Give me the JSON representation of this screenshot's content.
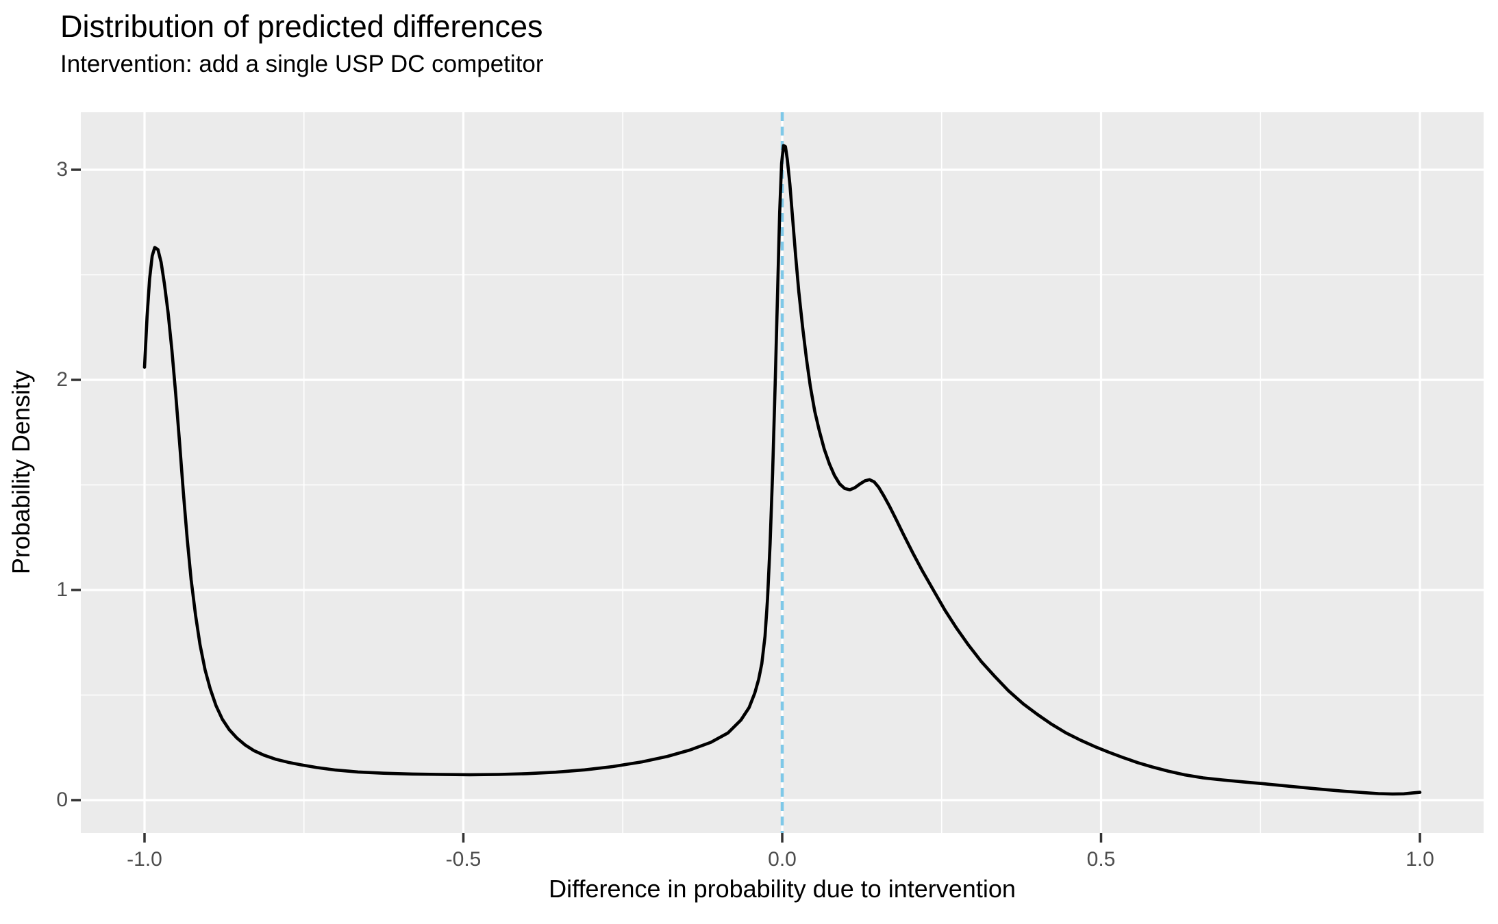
{
  "chart_data": {
    "type": "line",
    "title": "Distribution of predicted differences",
    "subtitle": "Intervention: add a single USP DC competitor",
    "xlabel": "Difference in probability due to intervention",
    "ylabel": "Probability Density",
    "xlim": [
      -1.1,
      1.1
    ],
    "ylim": [
      -0.155,
      3.27
    ],
    "x_ticks": [
      -1.0,
      -0.5,
      0.0,
      0.5,
      1.0
    ],
    "x_tick_labels": [
      "-1.0",
      "-0.5",
      "0.0",
      "0.5",
      "1.0"
    ],
    "y_ticks": [
      0,
      1,
      2,
      3
    ],
    "y_tick_labels": [
      "0",
      "1",
      "2",
      "3"
    ],
    "grid": "major+minor",
    "legend": "none",
    "colors": {
      "panel_bg": "#EBEBEB",
      "grid": "#FFFFFF",
      "curve": "#000000",
      "tick_mark": "#333333",
      "tick_label": "#4D4D4D",
      "vline": "#7EC8E8"
    },
    "vline": {
      "x": 0.0,
      "style": "dashed",
      "color": "#7EC8E8"
    },
    "series": [
      {
        "name": "density of predicted differences",
        "points": [
          [
            -1.0,
            2.06
          ],
          [
            -0.996,
            2.3
          ],
          [
            -0.992,
            2.48
          ],
          [
            -0.988,
            2.59
          ],
          [
            -0.984,
            2.63
          ],
          [
            -0.979,
            2.62
          ],
          [
            -0.974,
            2.56
          ],
          [
            -0.969,
            2.46
          ],
          [
            -0.963,
            2.32
          ],
          [
            -0.957,
            2.14
          ],
          [
            -0.951,
            1.93
          ],
          [
            -0.945,
            1.7
          ],
          [
            -0.939,
            1.46
          ],
          [
            -0.933,
            1.24
          ],
          [
            -0.927,
            1.05
          ],
          [
            -0.92,
            0.88
          ],
          [
            -0.913,
            0.74
          ],
          [
            -0.905,
            0.62
          ],
          [
            -0.897,
            0.53
          ],
          [
            -0.888,
            0.45
          ],
          [
            -0.878,
            0.385
          ],
          [
            -0.867,
            0.335
          ],
          [
            -0.855,
            0.295
          ],
          [
            -0.842,
            0.262
          ],
          [
            -0.828,
            0.235
          ],
          [
            -0.812,
            0.213
          ],
          [
            -0.795,
            0.195
          ],
          [
            -0.775,
            0.18
          ],
          [
            -0.755,
            0.168
          ],
          [
            -0.73,
            0.155
          ],
          [
            -0.7,
            0.143
          ],
          [
            -0.665,
            0.134
          ],
          [
            -0.625,
            0.128
          ],
          [
            -0.58,
            0.124
          ],
          [
            -0.535,
            0.122
          ],
          [
            -0.49,
            0.121
          ],
          [
            -0.445,
            0.122
          ],
          [
            -0.4,
            0.126
          ],
          [
            -0.355,
            0.133
          ],
          [
            -0.31,
            0.144
          ],
          [
            -0.265,
            0.16
          ],
          [
            -0.22,
            0.182
          ],
          [
            -0.18,
            0.208
          ],
          [
            -0.145,
            0.238
          ],
          [
            -0.112,
            0.275
          ],
          [
            -0.085,
            0.32
          ],
          [
            -0.065,
            0.38
          ],
          [
            -0.052,
            0.44
          ],
          [
            -0.043,
            0.51
          ],
          [
            -0.037,
            0.575
          ],
          [
            -0.032,
            0.65
          ],
          [
            -0.027,
            0.78
          ],
          [
            -0.023,
            0.96
          ],
          [
            -0.019,
            1.22
          ],
          [
            -0.015,
            1.56
          ],
          [
            -0.011,
            1.99
          ],
          [
            -0.007,
            2.45
          ],
          [
            -0.004,
            2.8
          ],
          [
            -0.001,
            3.03
          ],
          [
            0.002,
            3.115
          ],
          [
            0.005,
            3.11
          ],
          [
            0.008,
            3.05
          ],
          [
            0.012,
            2.93
          ],
          [
            0.016,
            2.78
          ],
          [
            0.021,
            2.59
          ],
          [
            0.026,
            2.42
          ],
          [
            0.032,
            2.25
          ],
          [
            0.038,
            2.1
          ],
          [
            0.044,
            1.97
          ],
          [
            0.051,
            1.85
          ],
          [
            0.058,
            1.76
          ],
          [
            0.066,
            1.67
          ],
          [
            0.074,
            1.6
          ],
          [
            0.082,
            1.545
          ],
          [
            0.09,
            1.505
          ],
          [
            0.098,
            1.483
          ],
          [
            0.106,
            1.477
          ],
          [
            0.114,
            1.487
          ],
          [
            0.122,
            1.505
          ],
          [
            0.13,
            1.52
          ],
          [
            0.137,
            1.525
          ],
          [
            0.144,
            1.515
          ],
          [
            0.151,
            1.49
          ],
          [
            0.159,
            1.45
          ],
          [
            0.168,
            1.4
          ],
          [
            0.178,
            1.34
          ],
          [
            0.19,
            1.265
          ],
          [
            0.205,
            1.175
          ],
          [
            0.22,
            1.09
          ],
          [
            0.237,
            1.0
          ],
          [
            0.255,
            0.905
          ],
          [
            0.273,
            0.82
          ],
          [
            0.292,
            0.738
          ],
          [
            0.312,
            0.66
          ],
          [
            0.333,
            0.59
          ],
          [
            0.355,
            0.52
          ],
          [
            0.378,
            0.458
          ],
          [
            0.4,
            0.408
          ],
          [
            0.422,
            0.362
          ],
          [
            0.445,
            0.32
          ],
          [
            0.468,
            0.285
          ],
          [
            0.49,
            0.255
          ],
          [
            0.512,
            0.228
          ],
          [
            0.535,
            0.202
          ],
          [
            0.558,
            0.178
          ],
          [
            0.58,
            0.158
          ],
          [
            0.605,
            0.138
          ],
          [
            0.632,
            0.12
          ],
          [
            0.66,
            0.106
          ],
          [
            0.69,
            0.096
          ],
          [
            0.722,
            0.087
          ],
          [
            0.755,
            0.078
          ],
          [
            0.788,
            0.068
          ],
          [
            0.82,
            0.059
          ],
          [
            0.852,
            0.05
          ],
          [
            0.882,
            0.042
          ],
          [
            0.91,
            0.036
          ],
          [
            0.935,
            0.031
          ],
          [
            0.957,
            0.029
          ],
          [
            0.975,
            0.03
          ],
          [
            0.988,
            0.034
          ],
          [
            1.0,
            0.037
          ]
        ]
      }
    ]
  }
}
